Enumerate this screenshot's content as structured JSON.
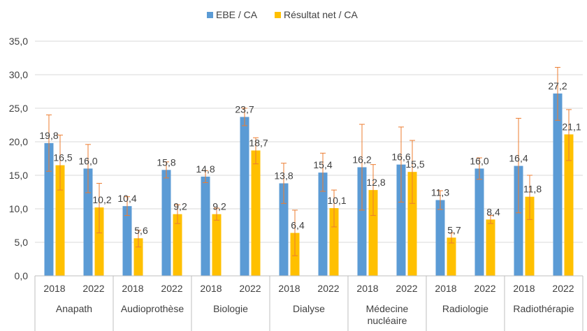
{
  "chart_data": {
    "type": "bar",
    "y_ticks": [
      "0,0",
      "5,0",
      "10,0",
      "15,0",
      "20,0",
      "25,0",
      "30,0",
      "35,0"
    ],
    "ylim": [
      0,
      35
    ],
    "grid": true,
    "legend_position": "top",
    "groups": [
      {
        "label_lines": [
          "Anapath"
        ],
        "years": [
          "2018",
          "2022"
        ]
      },
      {
        "label_lines": [
          "Audioprothèse"
        ],
        "years": [
          "2018",
          "2022"
        ]
      },
      {
        "label_lines": [
          "Biologie"
        ],
        "years": [
          "2018",
          "2022"
        ]
      },
      {
        "label_lines": [
          "Dialyse"
        ],
        "years": [
          "2018",
          "2022"
        ]
      },
      {
        "label_lines": [
          "Médecine",
          "nucléaire"
        ],
        "years": [
          "2018",
          "2022"
        ]
      },
      {
        "label_lines": [
          "Radiologie"
        ],
        "years": [
          "2018",
          "2022"
        ]
      },
      {
        "label_lines": [
          "Radiothérapie"
        ],
        "years": [
          "2018",
          "2022"
        ]
      }
    ],
    "series": [
      {
        "name": "EBE / CA",
        "color": "#5B9BD5",
        "values": [
          19.8,
          16.0,
          10.4,
          15.8,
          14.8,
          23.7,
          13.8,
          15.4,
          16.2,
          16.6,
          11.3,
          16.0,
          16.4,
          27.2
        ],
        "labels": [
          "19,8",
          "16,0",
          "10,4",
          "15,8",
          "14,8",
          "23,7",
          "13,8",
          "15,4",
          "16,2",
          "16,6",
          "11,3",
          "16,0",
          "16,4",
          "27,2"
        ],
        "err_low": [
          15.6,
          12.4,
          9.0,
          14.6,
          13.9,
          22.4,
          10.8,
          12.6,
          9.8,
          11.0,
          9.9,
          14.4,
          9.4,
          23.2
        ],
        "err_high": [
          24.0,
          19.6,
          11.8,
          17.0,
          15.7,
          25.0,
          16.8,
          18.3,
          22.6,
          22.2,
          12.7,
          17.6,
          23.5,
          31.1
        ]
      },
      {
        "name": "Résultat net / CA",
        "color": "#FFC000",
        "values": [
          16.5,
          10.2,
          5.6,
          9.2,
          9.2,
          18.7,
          6.4,
          10.1,
          12.8,
          15.5,
          5.7,
          8.4,
          11.8,
          21.1
        ],
        "labels": [
          "16,5",
          "10,2",
          "5,6",
          "9,2",
          "9,2",
          "18,7",
          "6,4",
          "10,1",
          "12,8",
          "15,5",
          "5,7",
          "8,4",
          "11,8",
          "21,1"
        ],
        "err_low": [
          12.8,
          6.4,
          4.3,
          7.8,
          8.3,
          16.7,
          3.0,
          7.3,
          9.0,
          10.8,
          4.9,
          7.8,
          8.4,
          17.2
        ],
        "err_high": [
          21.0,
          13.8,
          6.8,
          10.6,
          10.1,
          20.6,
          9.8,
          12.8,
          16.6,
          20.2,
          6.4,
          9.0,
          15.0,
          24.8
        ]
      }
    ]
  }
}
